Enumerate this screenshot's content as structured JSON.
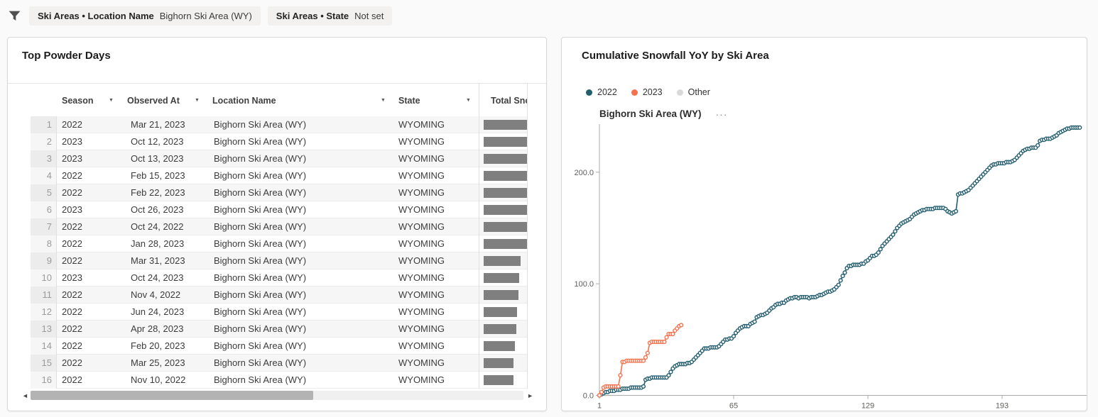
{
  "filter_bar": {
    "filters": [
      {
        "label": "Ski Areas • Location Name",
        "value": "Bighorn Ski Area (WY)"
      },
      {
        "label": "Ski Areas • State",
        "value": "Not set"
      }
    ]
  },
  "icons": {
    "filter": "funnel-icon",
    "sort_caret": "▼",
    "scroll_left": "◄",
    "scroll_right": "►",
    "menu_ellipsis": "···"
  },
  "table_panel": {
    "title": "Top Powder Days",
    "columns": [
      {
        "label": "Season",
        "sortable": true
      },
      {
        "label": "Observed At",
        "sortable": true
      },
      {
        "label": "Location Name",
        "sortable": true
      },
      {
        "label": "State",
        "sortable": true
      },
      {
        "label": "Total Snowfall",
        "sortable": false
      }
    ],
    "rows": [
      {
        "num": "1",
        "season": "2022",
        "observed_at": "Mar 21, 2023",
        "location": "Bighorn Ski Area (WY)",
        "state": "WYOMING",
        "bar": 61
      },
      {
        "num": "2",
        "season": "2023",
        "observed_at": "Oct 12, 2023",
        "location": "Bighorn Ski Area (WY)",
        "state": "WYOMING",
        "bar": 61
      },
      {
        "num": "3",
        "season": "2023",
        "observed_at": "Oct 13, 2023",
        "location": "Bighorn Ski Area (WY)",
        "state": "WYOMING",
        "bar": 61
      },
      {
        "num": "4",
        "season": "2022",
        "observed_at": "Feb 15, 2023",
        "location": "Bighorn Ski Area (WY)",
        "state": "WYOMING",
        "bar": 61
      },
      {
        "num": "5",
        "season": "2022",
        "observed_at": "Feb 22, 2023",
        "location": "Bighorn Ski Area (WY)",
        "state": "WYOMING",
        "bar": 61
      },
      {
        "num": "6",
        "season": "2023",
        "observed_at": "Oct 26, 2023",
        "location": "Bighorn Ski Area (WY)",
        "state": "WYOMING",
        "bar": 61
      },
      {
        "num": "7",
        "season": "2022",
        "observed_at": "Oct 24, 2022",
        "location": "Bighorn Ski Area (WY)",
        "state": "WYOMING",
        "bar": 61
      },
      {
        "num": "8",
        "season": "2022",
        "observed_at": "Jan 28, 2023",
        "location": "Bighorn Ski Area (WY)",
        "state": "WYOMING",
        "bar": 61
      },
      {
        "num": "9",
        "season": "2022",
        "observed_at": "Mar 31, 2023",
        "location": "Bighorn Ski Area (WY)",
        "state": "WYOMING",
        "bar": 52
      },
      {
        "num": "10",
        "season": "2023",
        "observed_at": "Oct 24, 2023",
        "location": "Bighorn Ski Area (WY)",
        "state": "WYOMING",
        "bar": 50
      },
      {
        "num": "11",
        "season": "2022",
        "observed_at": "Nov 4, 2022",
        "location": "Bighorn Ski Area (WY)",
        "state": "WYOMING",
        "bar": 49
      },
      {
        "num": "12",
        "season": "2022",
        "observed_at": "Jun 24, 2023",
        "location": "Bighorn Ski Area (WY)",
        "state": "WYOMING",
        "bar": 47
      },
      {
        "num": "13",
        "season": "2022",
        "observed_at": "Apr 28, 2023",
        "location": "Bighorn Ski Area (WY)",
        "state": "WYOMING",
        "bar": 46
      },
      {
        "num": "14",
        "season": "2022",
        "observed_at": "Feb 20, 2023",
        "location": "Bighorn Ski Area (WY)",
        "state": "WYOMING",
        "bar": 44
      },
      {
        "num": "15",
        "season": "2022",
        "observed_at": "Mar 25, 2023",
        "location": "Bighorn Ski Area (WY)",
        "state": "WYOMING",
        "bar": 42
      },
      {
        "num": "16",
        "season": "2022",
        "observed_at": "Nov 10, 2022",
        "location": "Bighorn Ski Area (WY)",
        "state": "WYOMING",
        "bar": 42
      }
    ]
  },
  "chart_panel": {
    "title": "Cumulative Snowfall YoY by Ski Area",
    "subtitle": "Bighorn Ski Area (WY)",
    "legend": [
      {
        "label": "2022",
        "color": "#235e70"
      },
      {
        "label": "2023",
        "color": "#f8714c"
      },
      {
        "label": "Other",
        "color": "#d9d9d9"
      }
    ]
  },
  "chart_data": {
    "type": "line",
    "title": "Cumulative Snowfall YoY by Ski Area",
    "subtitle": "Bighorn Ski Area (WY)",
    "xlabel": "",
    "ylabel": "",
    "x_ticks": [
      1,
      65,
      129,
      193
    ],
    "y_ticks": [
      0,
      100,
      200
    ],
    "y_tick_labels": [
      "0.0",
      "100.0",
      "200.0"
    ],
    "xlim": [
      1,
      235
    ],
    "ylim": [
      0,
      255
    ],
    "grid": false,
    "legend_position": "top-left",
    "series": [
      {
        "name": "2022",
        "color": "#235e70",
        "x_start": 1,
        "values": [
          0,
          1,
          2,
          3,
          3,
          4,
          4,
          4,
          5,
          5,
          5,
          6,
          6,
          6,
          6,
          7,
          7,
          7,
          7,
          7,
          7,
          8,
          14,
          15,
          15,
          16,
          16,
          16,
          16,
          16,
          16,
          16,
          16,
          18,
          21,
          24,
          26,
          27,
          28,
          28,
          28,
          28,
          29,
          29,
          30,
          32,
          34,
          36,
          38,
          40,
          42,
          42,
          42,
          43,
          43,
          43,
          43,
          44,
          46,
          48,
          50,
          50,
          51,
          51,
          53,
          56,
          58,
          60,
          61,
          62,
          62,
          62,
          64,
          65,
          66,
          70,
          71,
          72,
          72,
          73,
          74,
          76,
          78,
          79,
          81,
          82,
          82,
          83,
          83,
          85,
          86,
          87,
          87,
          88,
          88,
          87,
          88,
          88,
          88,
          88,
          87,
          88,
          88,
          88,
          89,
          90,
          90,
          91,
          92,
          93,
          93,
          94,
          95,
          97,
          99,
          103,
          107,
          110,
          114,
          116,
          116,
          117,
          117,
          117,
          117,
          118,
          118,
          120,
          121,
          123,
          125,
          125,
          126,
          128,
          131,
          134,
          136,
          138,
          140,
          142,
          144,
          147,
          150,
          152,
          154,
          155,
          156,
          157,
          158,
          160,
          162,
          163,
          164,
          165,
          166,
          166,
          167,
          167,
          167,
          167,
          168,
          168,
          168,
          168,
          168,
          167,
          165,
          164,
          163,
          164,
          165,
          180,
          181,
          181,
          182,
          183,
          184,
          186,
          188,
          190,
          192,
          194,
          196,
          198,
          200,
          202,
          204,
          206,
          207,
          207,
          208,
          208,
          208,
          208,
          209,
          209,
          209,
          210,
          211,
          213,
          215,
          217,
          219,
          220,
          221,
          221,
          222,
          222,
          222,
          224,
          228,
          229,
          229,
          230,
          230,
          230,
          231,
          232,
          233,
          235,
          236,
          237,
          238,
          239,
          239,
          240,
          240,
          240,
          240,
          240
        ]
      },
      {
        "name": "2023",
        "color": "#f8714c",
        "x_start": 1,
        "values": [
          0,
          3,
          7,
          8,
          8,
          8,
          8,
          8,
          8,
          8,
          18,
          30,
          30,
          31,
          31,
          31,
          31,
          31,
          31,
          31,
          31,
          31,
          34,
          38,
          47,
          48,
          48,
          48,
          48,
          48,
          48,
          48,
          52,
          55,
          55,
          55,
          58,
          60,
          62,
          63
        ]
      }
    ]
  }
}
